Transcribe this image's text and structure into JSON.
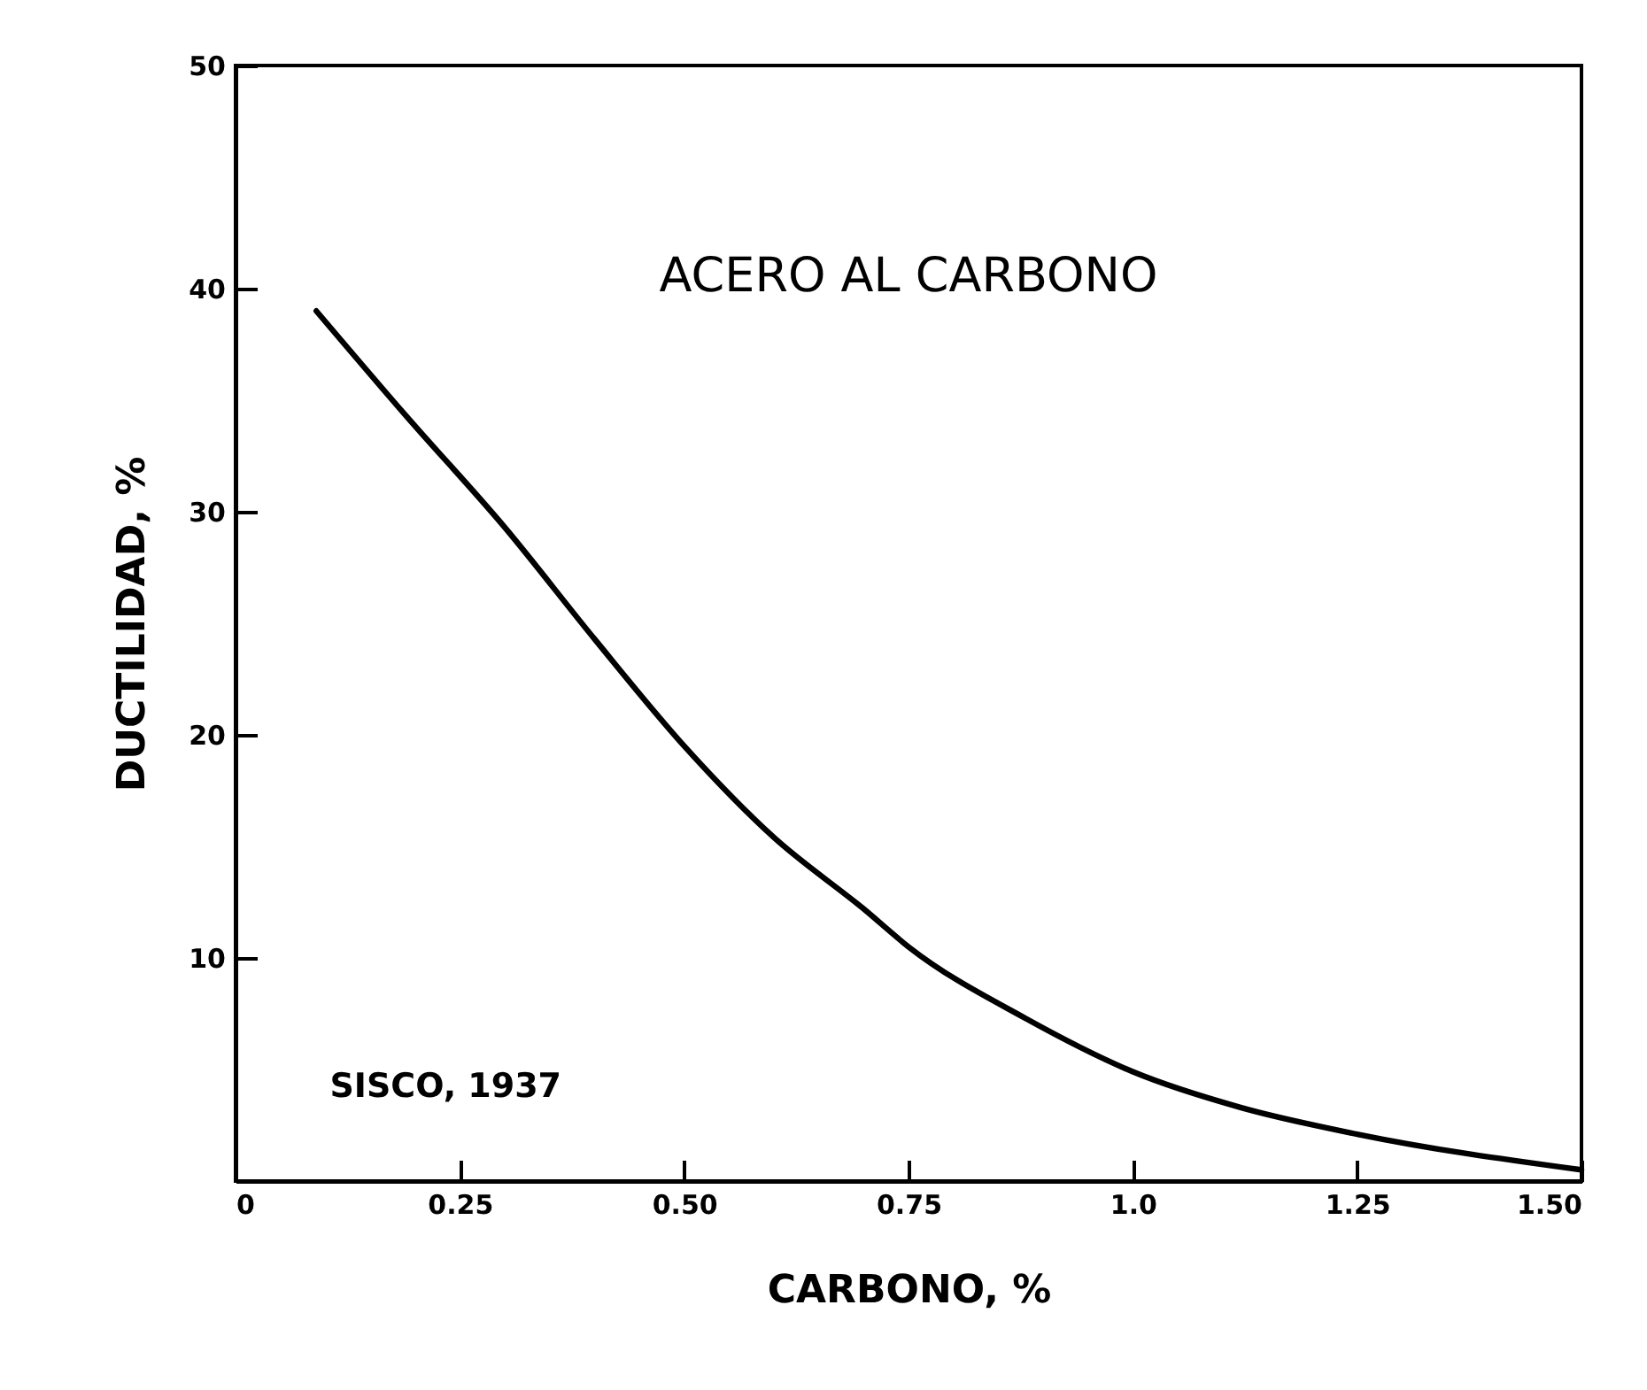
{
  "chart_data": {
    "type": "line",
    "xlabel": "CARBONO, %",
    "ylabel": "DUCTILIDAD, %",
    "annotations": [
      "ACERO AL CARBONO",
      "SISCO, 1937"
    ],
    "x": [
      0.09,
      0.19,
      0.3,
      0.4,
      0.5,
      0.6,
      0.7,
      0.75,
      0.88,
      1.0,
      1.12,
      1.25,
      1.5
    ],
    "series": [
      {
        "color": "#000000",
        "values": [
          39,
          34.3,
          29.3,
          24.3,
          19.5,
          15.4,
          12.2,
          10.5,
          7.3,
          4.9,
          3.3,
          2.1,
          0.5
        ]
      }
    ],
    "xlim": [
      0,
      1.5
    ],
    "ylim": [
      0,
      50
    ],
    "xticks": [
      0,
      0.25,
      {
        "value": 0.5,
        "label": "0.50"
      },
      0.75,
      {
        "value": 1,
        "label": "1.0"
      },
      1.25,
      {
        "value": 1.5,
        "label": "1.50"
      }
    ],
    "yticks": [
      10,
      20,
      30,
      40,
      50
    ],
    "grid": false,
    "marker": "none",
    "line_style": "solid"
  }
}
